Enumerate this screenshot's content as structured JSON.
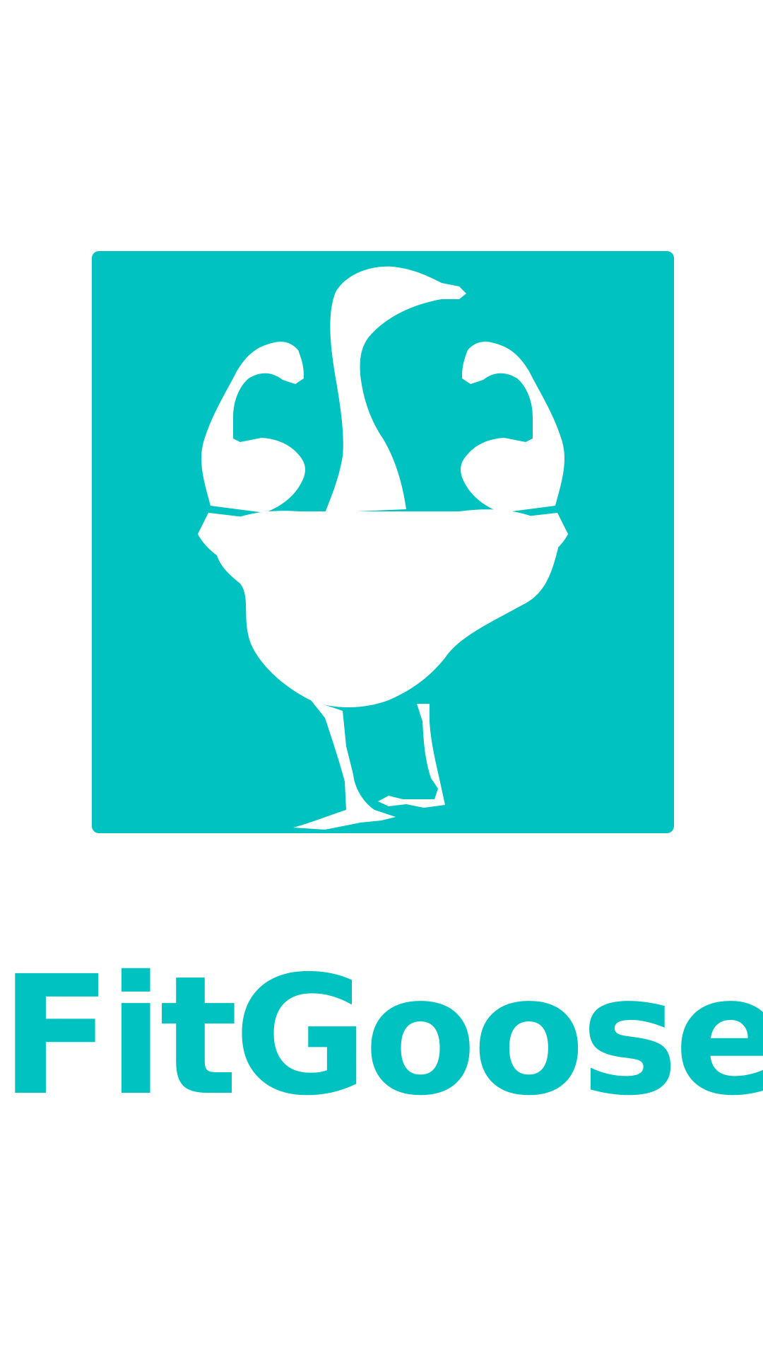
{
  "splash": {
    "brand_color": "#00c3c1",
    "background_color": "#ffffff",
    "logo_icon": "muscular-goose-icon",
    "app_name": "FitGoose"
  }
}
